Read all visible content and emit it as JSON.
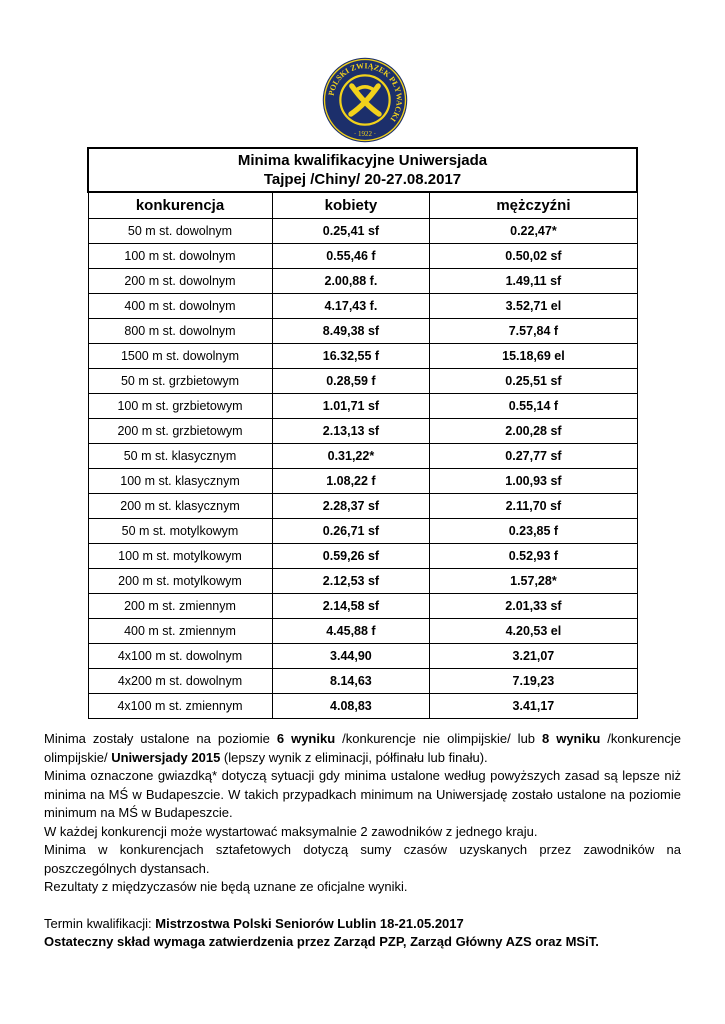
{
  "logo": {
    "text": "POLSKI ZWIĄZEK PŁYWACKI",
    "year": "1922",
    "colors": {
      "navy": "#1c2f6b",
      "yellow": "#f2d21b"
    }
  },
  "title": {
    "line1": "Minima kwalifikacyjne Uniwersjada",
    "line2": "Tajpej /Chiny/ 20-27.08.2017"
  },
  "headers": [
    "konkurencja",
    "kobiety",
    "mężczyźni"
  ],
  "rows": [
    [
      "50 m st. dowolnym",
      "0.25,41 sf",
      "0.22,47*"
    ],
    [
      "100 m st. dowolnym",
      "0.55,46 f",
      "0.50,02 sf"
    ],
    [
      "200 m st. dowolnym",
      "2.00,88 f.",
      "1.49,11 sf"
    ],
    [
      "400 m st.  dowolnym",
      "4.17,43 f.",
      "3.52,71 el"
    ],
    [
      "800 m st.  dowolnym",
      "8.49,38 sf",
      "7.57,84 f"
    ],
    [
      "1500 m st. dowolnym",
      "16.32,55 f",
      "15.18,69 el"
    ],
    [
      "50 m st. grzbietowym",
      "0.28,59 f",
      "0.25,51 sf"
    ],
    [
      "100 m st. grzbietowym",
      "1.01,71 sf",
      "0.55,14 f"
    ],
    [
      "200 m st. grzbietowym",
      "2.13,13 sf",
      "2.00,28 sf"
    ],
    [
      "50 m st. klasycznym",
      "0.31,22*",
      "0.27,77 sf"
    ],
    [
      "100 m st. klasycznym",
      "1.08,22 f",
      "1.00,93 sf"
    ],
    [
      "200 m st. klasycznym",
      "2.28,37 sf",
      "2.11,70 sf"
    ],
    [
      "50 m st. motylkowym",
      "0.26,71 sf",
      "0.23,85 f"
    ],
    [
      "100 m st. motylkowym",
      "0.59,26 sf",
      "0.52,93 f"
    ],
    [
      "200 m st. motylkowym",
      "2.12,53 sf",
      "1.57,28*"
    ],
    [
      "200 m st. zmiennym",
      "2.14,58 sf",
      "2.01,33 sf"
    ],
    [
      "400 m st. zmiennym",
      "4.45,88 f",
      "4.20,53 el"
    ],
    [
      "4x100 m st. dowolnym",
      "3.44,90",
      "3.21,07"
    ],
    [
      "4x200 m st. dowolnym",
      "8.14,63",
      "7.19,23"
    ],
    [
      "4x100 m st. zmiennym",
      "4.08,83",
      "3.41,17"
    ]
  ],
  "notes": {
    "p1": [
      {
        "t": "Minima zostały ustalone na poziomie ",
        "b": false
      },
      {
        "t": "6 wyniku",
        "b": true
      },
      {
        "t": " /konkurencje nie olimpijskie/ lub ",
        "b": false
      },
      {
        "t": "8 wyniku",
        "b": true
      },
      {
        "t": " /konkurencje olimpijskie/ ",
        "b": false
      },
      {
        "t": "Uniwersjady 2015",
        "b": true
      },
      {
        "t": " (lepszy wynik z eliminacji, półfinału lub finału).",
        "b": false
      }
    ],
    "p2": "Minima oznaczone gwiazdką* dotyczą sytuacji gdy minima ustalone według powyższych zasad są lepsze niż minima na MŚ w Budapeszcie. W takich przypadkach minimum na Uniwersjadę zostało ustalone na poziomie minimum na MŚ w Budapeszcie.",
    "p3": "W każdej konkurencji może wystartować maksymalnie 2 zawodników z jednego kraju.",
    "p4": "Minima w konkurencjach sztafetowych dotyczą sumy czasów uzyskanych przez zawodników na poszczególnych dystansach.",
    "p5": "Rezultaty z międzyczasów nie  będą uznane ze oficjalne wyniki.",
    "term_label": "Termin kwalifikacji: ",
    "term_value": "Mistrzostwa Polski Seniorów Lublin 18-21.05.2017",
    "final": "Ostateczny skład wymaga zatwierdzenia przez Zarząd PZP, Zarząd Główny AZS oraz MSiT."
  }
}
